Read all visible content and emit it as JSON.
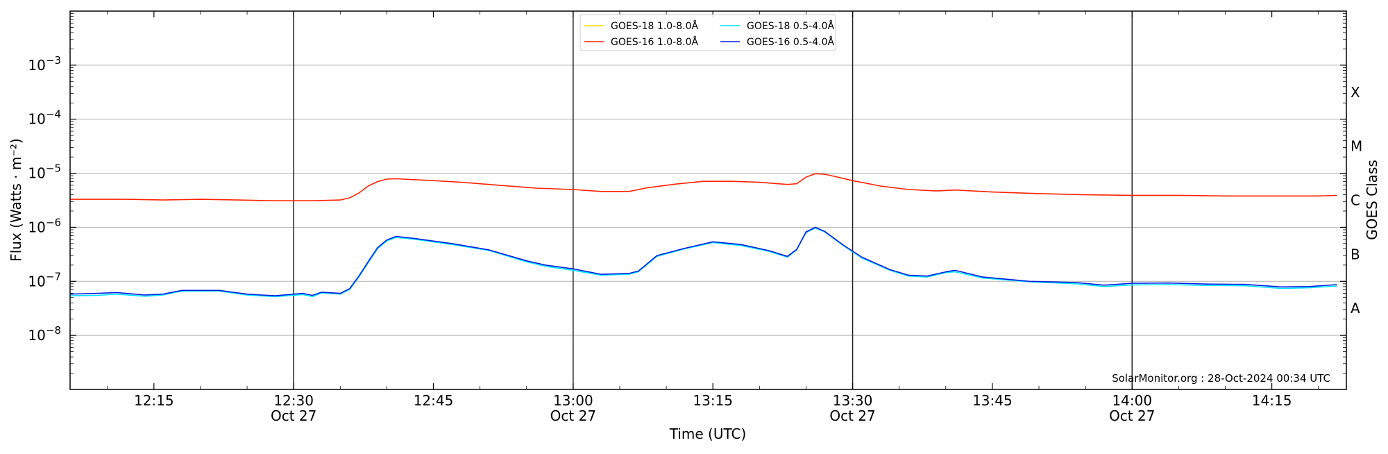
{
  "chart_data": {
    "type": "line",
    "xlabel": "Time (UTC)",
    "ylabel": "Flux (Watts · m⁻²)",
    "right_axis_label": "GOES Class",
    "yscale": "log",
    "ylim": [
      1e-09,
      0.01
    ],
    "xlim": [
      "12:06",
      "14:23"
    ],
    "date": "Oct 27",
    "grid": "horizontal at decades",
    "legend_position": "top-center",
    "watermark": "SolarMonitor.org : 28-Oct-2024 00:34 UTC",
    "y_ticks": [
      {
        "value": 1e-08,
        "label": "10",
        "exp": "−8"
      },
      {
        "value": 1e-07,
        "label": "10",
        "exp": "−7"
      },
      {
        "value": 1e-06,
        "label": "10",
        "exp": "−6"
      },
      {
        "value": 1e-05,
        "label": "10",
        "exp": "−5"
      },
      {
        "value": 0.0001,
        "label": "10",
        "exp": "−4"
      },
      {
        "value": 0.001,
        "label": "10",
        "exp": "−3"
      }
    ],
    "x_ticks": [
      {
        "time": "12:15",
        "label": "12:15",
        "sub": ""
      },
      {
        "time": "12:30",
        "label": "12:30",
        "sub": "Oct 27"
      },
      {
        "time": "12:45",
        "label": "12:45",
        "sub": ""
      },
      {
        "time": "13:00",
        "label": "13:00",
        "sub": "Oct 27"
      },
      {
        "time": "13:15",
        "label": "13:15",
        "sub": ""
      },
      {
        "time": "13:30",
        "label": "13:30",
        "sub": "Oct 27"
      },
      {
        "time": "13:45",
        "label": "13:45",
        "sub": ""
      },
      {
        "time": "14:00",
        "label": "14:00",
        "sub": "Oct 27"
      },
      {
        "time": "14:15",
        "label": "14:15",
        "sub": ""
      }
    ],
    "vertical_lines": [
      "12:30",
      "13:00",
      "13:30",
      "14:00"
    ],
    "goes_classes": [
      {
        "label": "X",
        "center": 0.000316
      },
      {
        "label": "M",
        "center": 3.16e-05
      },
      {
        "label": "C",
        "center": 3.16e-06
      },
      {
        "label": "B",
        "center": 3.16e-07
      },
      {
        "label": "A",
        "center": 3.16e-08
      }
    ],
    "legend": [
      {
        "label": "GOES-18 1.0-8.0Å",
        "color": "#ffd700"
      },
      {
        "label": "GOES-18 0.5-4.0Å",
        "color": "#00e5ff"
      },
      {
        "label": "GOES-16 1.0-8.0Å",
        "color": "#ff2200"
      },
      {
        "label": "GOES-16 0.5-4.0Å",
        "color": "#0020e0"
      }
    ],
    "series": [
      {
        "name": "GOES-16 1.0-8.0Å",
        "color": "#ff2200",
        "points": [
          [
            "12:06",
            3.3e-06
          ],
          [
            "12:12",
            3.3e-06
          ],
          [
            "12:16",
            3.2e-06
          ],
          [
            "12:20",
            3.3e-06
          ],
          [
            "12:24",
            3.2e-06
          ],
          [
            "12:28",
            3.1e-06
          ],
          [
            "12:32",
            3.1e-06
          ],
          [
            "12:35",
            3.2e-06
          ],
          [
            "12:36",
            3.5e-06
          ],
          [
            "12:37",
            4.3e-06
          ],
          [
            "12:38",
            5.8e-06
          ],
          [
            "12:39",
            7e-06
          ],
          [
            "12:40",
            7.8e-06
          ],
          [
            "12:41",
            7.9e-06
          ],
          [
            "12:45",
            7.3e-06
          ],
          [
            "12:48",
            6.8e-06
          ],
          [
            "12:52",
            6e-06
          ],
          [
            "12:56",
            5.3e-06
          ],
          [
            "13:00",
            5e-06
          ],
          [
            "13:03",
            4.6e-06
          ],
          [
            "13:06",
            4.6e-06
          ],
          [
            "13:08",
            5.4e-06
          ],
          [
            "13:11",
            6.3e-06
          ],
          [
            "13:14",
            7.1e-06
          ],
          [
            "13:17",
            7.1e-06
          ],
          [
            "13:20",
            6.8e-06
          ],
          [
            "13:23",
            6.2e-06
          ],
          [
            "13:24",
            6.4e-06
          ],
          [
            "13:25",
            8.5e-06
          ],
          [
            "13:26",
            9.8e-06
          ],
          [
            "13:27",
            9.6e-06
          ],
          [
            "13:28",
            8.8e-06
          ],
          [
            "13:30",
            7.3e-06
          ],
          [
            "13:33",
            5.8e-06
          ],
          [
            "13:36",
            5e-06
          ],
          [
            "13:39",
            4.7e-06
          ],
          [
            "13:41",
            4.9e-06
          ],
          [
            "13:45",
            4.5e-06
          ],
          [
            "13:50",
            4.2e-06
          ],
          [
            "13:55",
            4e-06
          ],
          [
            "14:00",
            3.9e-06
          ],
          [
            "14:05",
            3.9e-06
          ],
          [
            "14:10",
            3.8e-06
          ],
          [
            "14:15",
            3.8e-06
          ],
          [
            "14:20",
            3.8e-06
          ],
          [
            "14:22",
            3.9e-06
          ]
        ]
      },
      {
        "name": "GOES-18 0.5-4.0Å",
        "color": "#00e5ff",
        "points": [
          [
            "12:06",
            5.4e-08
          ],
          [
            "12:09",
            5.5e-08
          ],
          [
            "12:11",
            5.8e-08
          ],
          [
            "12:14",
            5.3e-08
          ],
          [
            "12:16",
            5.6e-08
          ],
          [
            "12:18",
            6.6e-08
          ],
          [
            "12:22",
            6.6e-08
          ],
          [
            "12:25",
            5.6e-08
          ],
          [
            "12:28",
            5.2e-08
          ],
          [
            "12:31",
            5.7e-08
          ],
          [
            "12:32",
            5.2e-08
          ],
          [
            "12:33",
            6.1e-08
          ],
          [
            "12:35",
            5.8e-08
          ],
          [
            "12:36",
            7e-08
          ],
          [
            "12:37",
            1.2e-07
          ],
          [
            "12:38",
            2.2e-07
          ],
          [
            "12:39",
            4e-07
          ],
          [
            "12:40",
            5.6e-07
          ],
          [
            "12:41",
            6.5e-07
          ],
          [
            "12:43",
            6e-07
          ],
          [
            "12:47",
            4.8e-07
          ],
          [
            "12:51",
            3.7e-07
          ],
          [
            "12:55",
            2.3e-07
          ],
          [
            "12:57",
            1.9e-07
          ],
          [
            "13:00",
            1.6e-07
          ],
          [
            "13:03",
            1.3e-07
          ],
          [
            "13:06",
            1.35e-07
          ],
          [
            "13:07",
            1.5e-07
          ],
          [
            "13:09",
            2.9e-07
          ],
          [
            "13:12",
            4e-07
          ],
          [
            "13:15",
            5.2e-07
          ],
          [
            "13:18",
            4.6e-07
          ],
          [
            "13:21",
            3.6e-07
          ],
          [
            "13:23",
            2.8e-07
          ],
          [
            "13:24",
            3.8e-07
          ],
          [
            "13:25",
            8e-07
          ],
          [
            "13:26",
            9.7e-07
          ],
          [
            "13:27",
            8.2e-07
          ],
          [
            "13:29",
            4.6e-07
          ],
          [
            "13:31",
            2.7e-07
          ],
          [
            "13:34",
            1.6e-07
          ],
          [
            "13:36",
            1.25e-07
          ],
          [
            "13:38",
            1.2e-07
          ],
          [
            "13:40",
            1.45e-07
          ],
          [
            "13:41",
            1.5e-07
          ],
          [
            "13:44",
            1.15e-07
          ],
          [
            "13:49",
            9.8e-08
          ],
          [
            "13:54",
            9e-08
          ],
          [
            "13:57",
            8e-08
          ],
          [
            "14:00",
            8.6e-08
          ],
          [
            "14:04",
            8.7e-08
          ],
          [
            "14:08",
            8.4e-08
          ],
          [
            "14:12",
            8.3e-08
          ],
          [
            "14:16",
            7.4e-08
          ],
          [
            "14:19",
            7.6e-08
          ],
          [
            "14:22",
            8.2e-08
          ]
        ]
      },
      {
        "name": "GOES-16 0.5-4.0Å",
        "color": "#0020e0",
        "points": [
          [
            "12:06",
            5.8e-08
          ],
          [
            "12:09",
            6e-08
          ],
          [
            "12:11",
            6.2e-08
          ],
          [
            "12:14",
            5.6e-08
          ],
          [
            "12:16",
            5.8e-08
          ],
          [
            "12:18",
            6.8e-08
          ],
          [
            "12:22",
            6.8e-08
          ],
          [
            "12:25",
            5.8e-08
          ],
          [
            "12:28",
            5.4e-08
          ],
          [
            "12:31",
            6e-08
          ],
          [
            "12:32",
            5.5e-08
          ],
          [
            "12:33",
            6.3e-08
          ],
          [
            "12:35",
            6e-08
          ],
          [
            "12:36",
            7.3e-08
          ],
          [
            "12:37",
            1.25e-07
          ],
          [
            "12:38",
            2.3e-07
          ],
          [
            "12:39",
            4.2e-07
          ],
          [
            "12:40",
            5.8e-07
          ],
          [
            "12:41",
            6.8e-07
          ],
          [
            "12:43",
            6.2e-07
          ],
          [
            "12:47",
            5e-07
          ],
          [
            "12:51",
            3.8e-07
          ],
          [
            "12:55",
            2.4e-07
          ],
          [
            "12:57",
            2e-07
          ],
          [
            "13:00",
            1.7e-07
          ],
          [
            "13:03",
            1.35e-07
          ],
          [
            "13:06",
            1.4e-07
          ],
          [
            "13:07",
            1.55e-07
          ],
          [
            "13:09",
            3e-07
          ],
          [
            "13:12",
            4.1e-07
          ],
          [
            "13:15",
            5.4e-07
          ],
          [
            "13:18",
            4.8e-07
          ],
          [
            "13:21",
            3.7e-07
          ],
          [
            "13:23",
            2.9e-07
          ],
          [
            "13:24",
            3.9e-07
          ],
          [
            "13:25",
            8.2e-07
          ],
          [
            "13:26",
            1e-06
          ],
          [
            "13:27",
            8.4e-07
          ],
          [
            "13:29",
            4.7e-07
          ],
          [
            "13:31",
            2.8e-07
          ],
          [
            "13:34",
            1.65e-07
          ],
          [
            "13:36",
            1.3e-07
          ],
          [
            "13:38",
            1.25e-07
          ],
          [
            "13:40",
            1.5e-07
          ],
          [
            "13:41",
            1.6e-07
          ],
          [
            "13:44",
            1.2e-07
          ],
          [
            "13:49",
            1e-07
          ],
          [
            "13:54",
            9.5e-08
          ],
          [
            "13:57",
            8.5e-08
          ],
          [
            "14:00",
            9.2e-08
          ],
          [
            "14:04",
            9.3e-08
          ],
          [
            "14:08",
            8.9e-08
          ],
          [
            "14:12",
            8.8e-08
          ],
          [
            "14:16",
            7.9e-08
          ],
          [
            "14:19",
            8e-08
          ],
          [
            "14:22",
            8.7e-08
          ]
        ]
      }
    ]
  }
}
